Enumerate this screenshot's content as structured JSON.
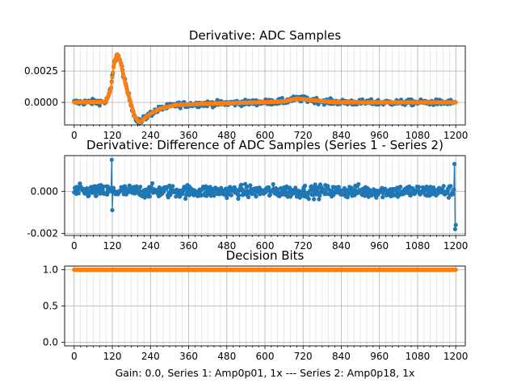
{
  "chart_data": [
    {
      "type": "scatter",
      "title": "Derivative: ADC Samples",
      "xlim": [
        -30,
        1230
      ],
      "ylim": [
        -0.0018,
        0.0045
      ],
      "x_ticks": [
        0,
        120,
        240,
        360,
        480,
        600,
        720,
        840,
        960,
        1080,
        1200
      ],
      "y_ticks": [
        0.0,
        0.0025
      ],
      "y_tick_labels": [
        "0.0000",
        "0.0025"
      ],
      "grid": true,
      "series": [
        {
          "color": "#1f77b4",
          "marker": "dot-line",
          "noise": 0.00022,
          "points": [
            [
              0,
              0
            ],
            [
              100,
              5e-05
            ],
            [
              115,
              0.001
            ],
            [
              125,
              0.003
            ],
            [
              135,
              0.0039
            ],
            [
              145,
              0.0033
            ],
            [
              160,
              0.0016
            ],
            [
              175,
              0.0002
            ],
            [
              190,
              -0.0011
            ],
            [
              205,
              -0.0016
            ],
            [
              220,
              -0.0013
            ],
            [
              240,
              -0.0009
            ],
            [
              270,
              -0.0005
            ],
            [
              320,
              -0.0002
            ],
            [
              400,
              -0.00012
            ],
            [
              500,
              -5e-05
            ],
            [
              600,
              2e-05
            ],
            [
              660,
              8e-05
            ],
            [
              700,
              0.0003
            ],
            [
              740,
              0.0002
            ],
            [
              780,
              0.0001
            ],
            [
              820,
              2e-05
            ],
            [
              900,
              0
            ],
            [
              1200,
              0
            ]
          ]
        },
        {
          "color": "#ff7f0e",
          "marker": "dot-line",
          "noise": 0,
          "points": [
            [
              0,
              0
            ],
            [
              100,
              5e-05
            ],
            [
              115,
              0.001
            ],
            [
              125,
              0.003
            ],
            [
              135,
              0.0039
            ],
            [
              145,
              0.0033
            ],
            [
              160,
              0.0016
            ],
            [
              175,
              0.0002
            ],
            [
              190,
              -0.0011
            ],
            [
              205,
              -0.0016
            ],
            [
              220,
              -0.0013
            ],
            [
              240,
              -0.0009
            ],
            [
              270,
              -0.0005
            ],
            [
              320,
              -0.0002
            ],
            [
              400,
              -0.00012
            ],
            [
              500,
              -5e-05
            ],
            [
              600,
              2e-05
            ],
            [
              660,
              8e-05
            ],
            [
              700,
              0.0003
            ],
            [
              740,
              0.0002
            ],
            [
              780,
              0.0001
            ],
            [
              820,
              2e-05
            ],
            [
              900,
              0
            ],
            [
              1200,
              0
            ]
          ]
        }
      ]
    },
    {
      "type": "scatter",
      "title": "Derivative: Difference of ADC Samples (Series 1 - Series 2)",
      "xlim": [
        -30,
        1230
      ],
      "ylim": [
        -0.0021,
        0.0017
      ],
      "x_ticks": [
        0,
        120,
        240,
        360,
        480,
        600,
        720,
        840,
        960,
        1080,
        1200
      ],
      "y_ticks": [
        -0.002,
        0.0
      ],
      "y_tick_labels": [
        "-0.002",
        "0.000"
      ],
      "grid": true,
      "series": [
        {
          "color": "#1f77b4",
          "marker": "dot-line",
          "noise": 0.0003,
          "points": [
            [
              0,
              0
            ],
            [
              1200,
              0
            ]
          ],
          "spikes": [
            [
              118,
              0.0015
            ],
            [
              120,
              -0.0009
            ],
            [
              1196,
              0.0013
            ],
            [
              1198,
              -0.0018
            ],
            [
              1199,
              -0.0016
            ]
          ]
        }
      ]
    },
    {
      "type": "scatter",
      "title": "Decision Bits",
      "xlim": [
        -30,
        1230
      ],
      "ylim": [
        -0.05,
        1.05
      ],
      "x_ticks": [
        0,
        120,
        240,
        360,
        480,
        600,
        720,
        840,
        960,
        1080,
        1200
      ],
      "y_ticks": [
        0.0,
        0.5,
        1.0
      ],
      "y_tick_labels": [
        "0.0",
        "0.5",
        "1.0"
      ],
      "grid": true,
      "xlabel": "Gain: 0.0, Series 1: Amp0p01, 1x --- Series 2: Amp0p18, 1x",
      "series": [
        {
          "color": "#1f77b4",
          "marker": "dot-line",
          "noise": 0,
          "points": [
            [
              0,
              1
            ],
            [
              1200,
              1
            ]
          ]
        },
        {
          "color": "#ff7f0e",
          "marker": "dot-line",
          "noise": 0,
          "points": [
            [
              0,
              1
            ],
            [
              1200,
              1
            ]
          ]
        }
      ]
    }
  ]
}
